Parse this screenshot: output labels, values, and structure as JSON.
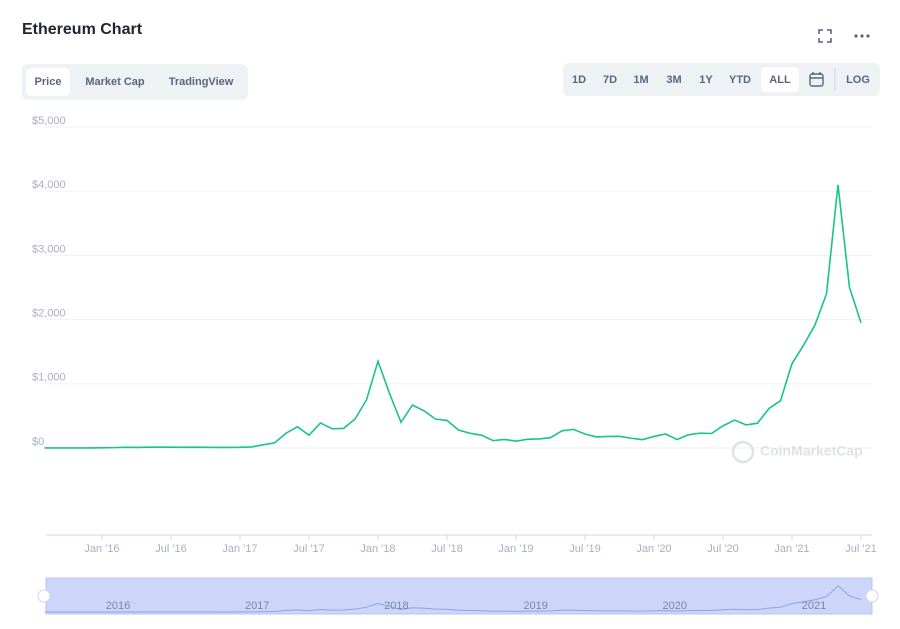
{
  "header": {
    "title": "Ethereum Chart",
    "tabs": [
      "Price",
      "Market Cap",
      "TradingView"
    ],
    "ranges": [
      "1D",
      "7D",
      "1M",
      "3M",
      "1Y",
      "YTD",
      "ALL"
    ],
    "log": "LOG"
  },
  "watermark": "CoinMarketCap",
  "navigator_years": [
    "2016",
    "2017",
    "2018",
    "2019",
    "2020",
    "2021"
  ],
  "chart_data": {
    "type": "line",
    "x": [
      "2015-08",
      "2015-09",
      "2015-10",
      "2015-11",
      "2015-12",
      "2016-01",
      "2016-02",
      "2016-03",
      "2016-04",
      "2016-05",
      "2016-06",
      "2016-07",
      "2016-08",
      "2016-09",
      "2016-10",
      "2016-11",
      "2016-12",
      "2017-01",
      "2017-02",
      "2017-03",
      "2017-04",
      "2017-05",
      "2017-06",
      "2017-07",
      "2017-08",
      "2017-09",
      "2017-10",
      "2017-11",
      "2017-12",
      "2018-01",
      "2018-02",
      "2018-03",
      "2018-04",
      "2018-05",
      "2018-06",
      "2018-07",
      "2018-08",
      "2018-09",
      "2018-10",
      "2018-11",
      "2018-12",
      "2019-01",
      "2019-02",
      "2019-03",
      "2019-04",
      "2019-05",
      "2019-06",
      "2019-07",
      "2019-08",
      "2019-09",
      "2019-10",
      "2019-11",
      "2019-12",
      "2020-01",
      "2020-02",
      "2020-03",
      "2020-04",
      "2020-05",
      "2020-06",
      "2020-07",
      "2020-08",
      "2020-09",
      "2020-10",
      "2020-11",
      "2020-12",
      "2021-01",
      "2021-02",
      "2021-03",
      "2021-04",
      "2021-05",
      "2021-06",
      "2021-07"
    ],
    "series": [
      {
        "color": "#16c784",
        "values": [
          1.2,
          0.9,
          0.9,
          0.9,
          0.9,
          2.2,
          6,
          11,
          8,
          13,
          12,
          12,
          11,
          13,
          11,
          9,
          8,
          10,
          16,
          50,
          80,
          230,
          330,
          200,
          390,
          300,
          305,
          450,
          750,
          1350,
          850,
          400,
          670,
          580,
          450,
          430,
          280,
          230,
          200,
          115,
          133,
          107,
          136,
          141,
          160,
          268,
          290,
          218,
          172,
          180,
          182,
          152,
          130,
          180,
          218,
          133,
          206,
          231,
          226,
          345,
          435,
          360,
          386,
          615,
          737,
          1314,
          1600,
          1918,
          2400,
          4100,
          2500,
          1950
        ]
      }
    ],
    "xlim": [
      "2015-08",
      "2021-08"
    ],
    "xticks": [
      {
        "value": "2016-01",
        "label": "Jan '16"
      },
      {
        "value": "2016-07",
        "label": "Jul '16"
      },
      {
        "value": "2017-01",
        "label": "Jan '17"
      },
      {
        "value": "2017-07",
        "label": "Jul '17"
      },
      {
        "value": "2018-01",
        "label": "Jan '18"
      },
      {
        "value": "2018-07",
        "label": "Jul '18"
      },
      {
        "value": "2019-01",
        "label": "Jan '19"
      },
      {
        "value": "2019-07",
        "label": "Jul '19"
      },
      {
        "value": "2020-01",
        "label": "Jan '20"
      },
      {
        "value": "2020-07",
        "label": "Jul '20"
      },
      {
        "value": "2021-01",
        "label": "Jan '21"
      },
      {
        "value": "2021-07",
        "label": "Jul '21"
      }
    ],
    "ylim": [
      0,
      5000
    ],
    "yticks": [
      {
        "value": 0,
        "label": "$0"
      },
      {
        "value": 1000,
        "label": "$1,000"
      },
      {
        "value": 2000,
        "label": "$2,000"
      },
      {
        "value": 3000,
        "label": "$3,000"
      },
      {
        "value": 4000,
        "label": "$4,000"
      },
      {
        "value": 5000,
        "label": "$5,000"
      }
    ],
    "grid": true
  }
}
